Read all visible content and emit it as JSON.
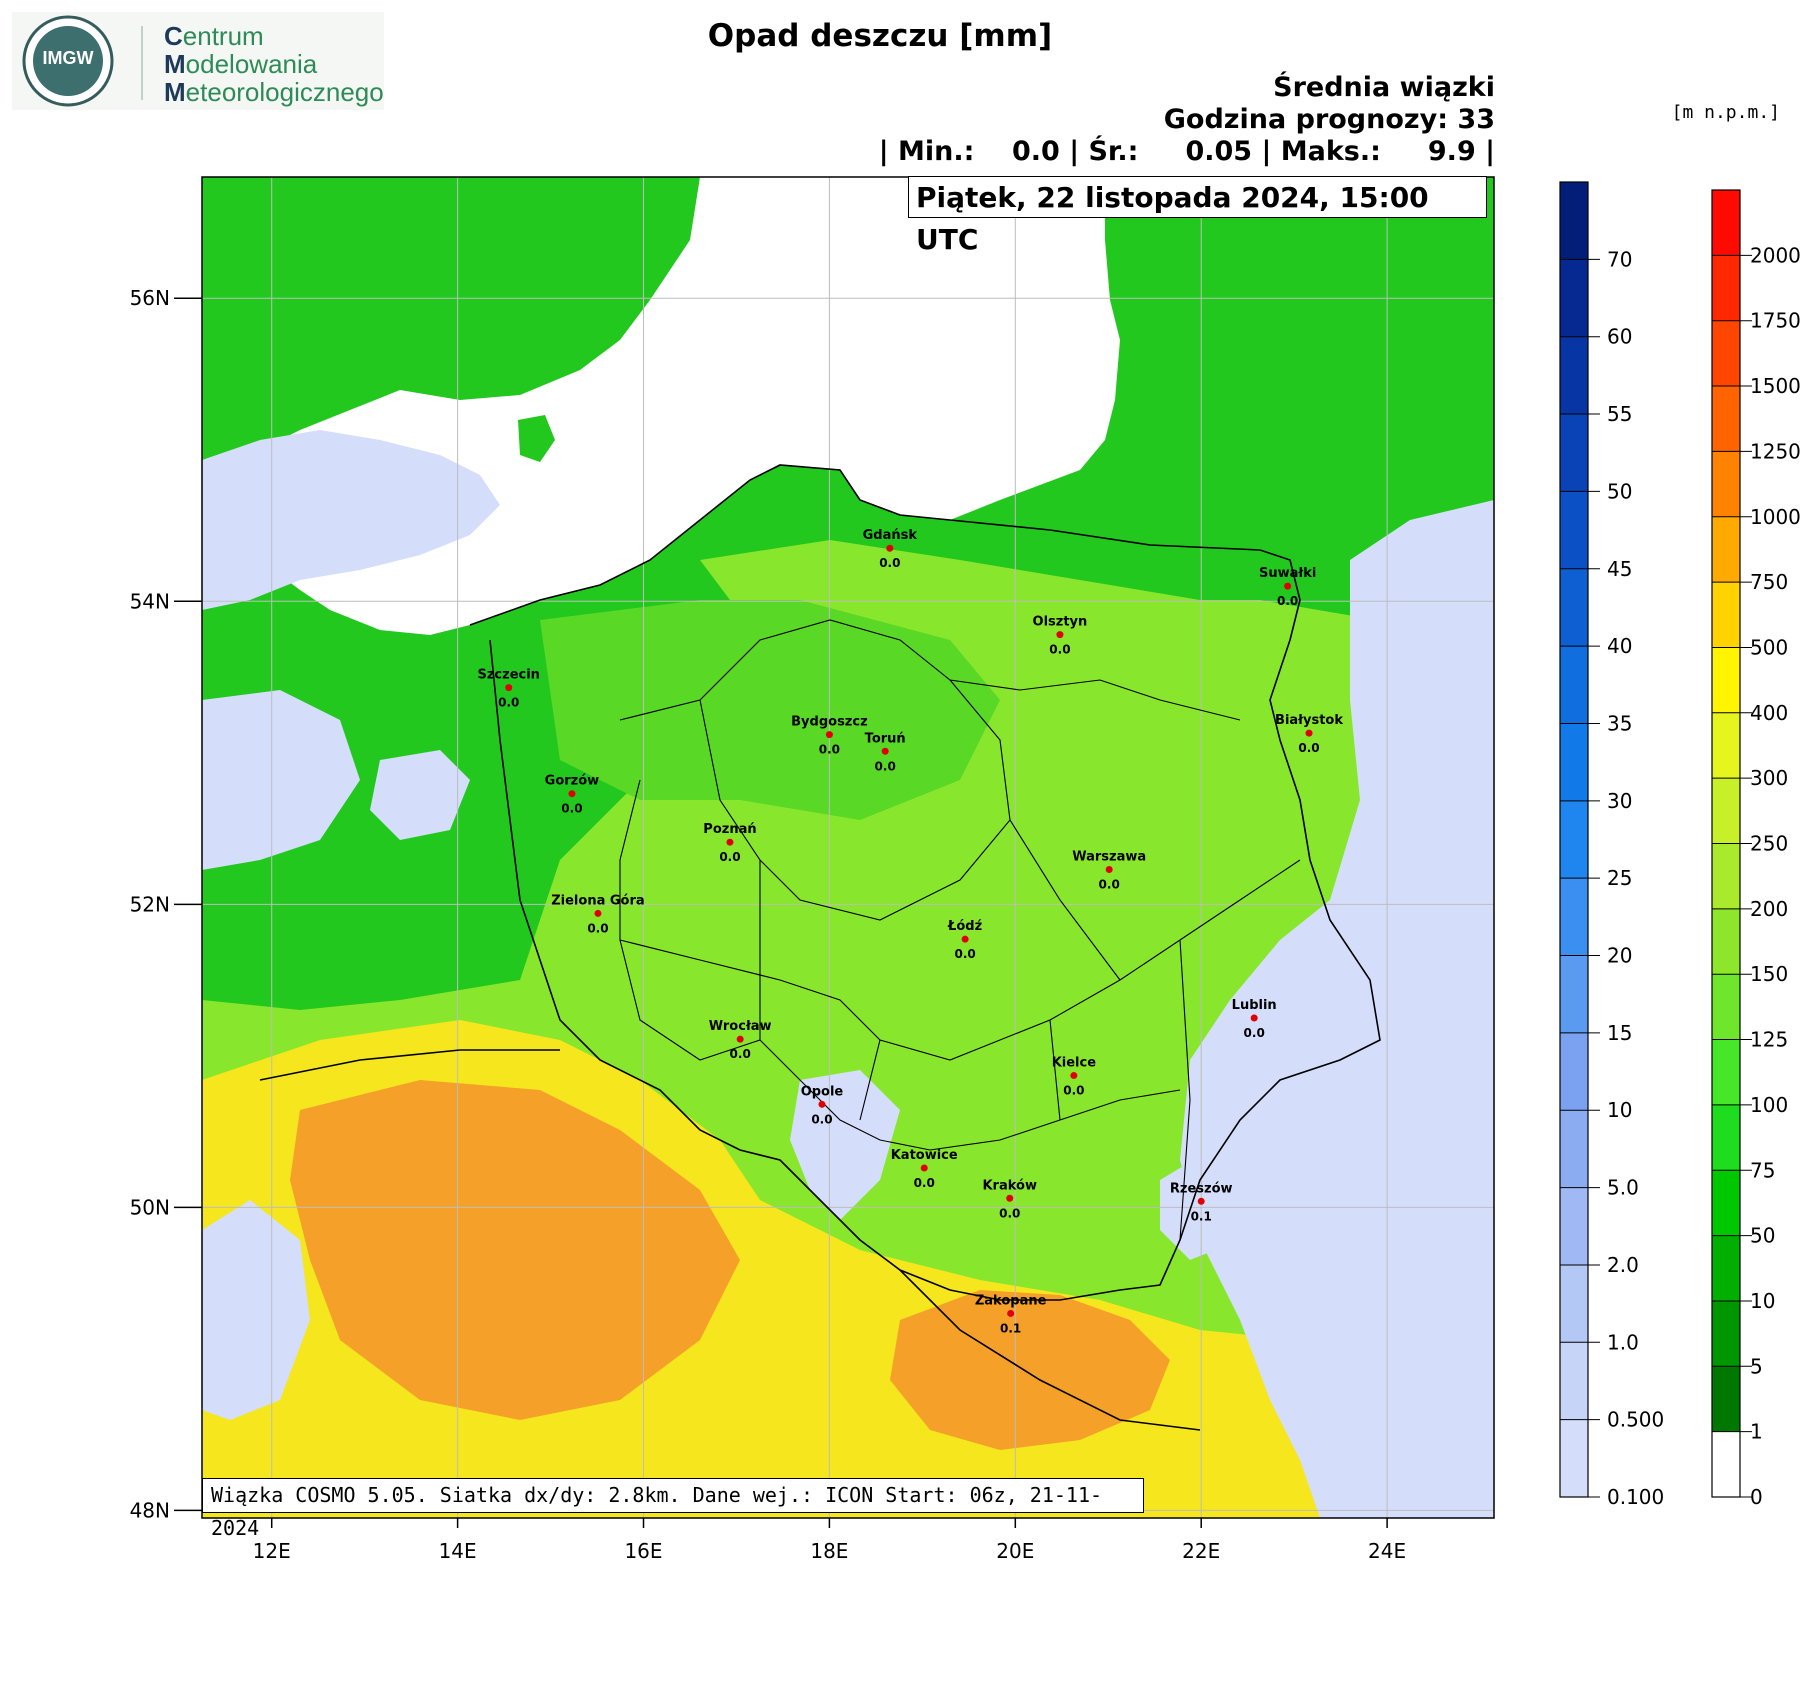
{
  "header": {
    "logo": {
      "org_lines": [
        [
          "C",
          "entrum"
        ],
        [
          "M",
          "odelowania"
        ],
        [
          "M",
          "eteorologicznego"
        ]
      ],
      "badge": "IMGW"
    },
    "title": "Opad deszczu [mm]",
    "ensemble": "Średnia wiązki",
    "forecast_hour": "Godzina prognozy: 33",
    "stats": "| Min.:    0.0 | Śr.:     0.05 | Maks.:     9.9 |",
    "date": "Piątek, 22 listopada 2024, 15:00 UTC",
    "elevation_unit": "[m n.p.m.]"
  },
  "footer": "Wiązka COSMO 5.05. Siatka dx/dy: 2.8km. Dane wej.: ICON Start: 06z, 21-11-2024",
  "map": {
    "lon_ticks": [
      "12E",
      "14E",
      "16E",
      "18E",
      "20E",
      "22E",
      "24E"
    ],
    "lat_ticks": [
      "56N",
      "54N",
      "52N",
      "50N",
      "48N"
    ],
    "lon_range": [
      11.25,
      25.15
    ],
    "lat_range": [
      47.95,
      56.8
    ],
    "colors": {
      "sea": "#ffffff",
      "lowland": "#22c81e",
      "midland": "#88e62c",
      "upland": "#f5e61e",
      "mountain": "#f5a028",
      "rain": "#d4defa",
      "border": "#000000"
    },
    "cities": [
      {
        "name": "Gdańsk",
        "value": "0.0",
        "lon": 18.65,
        "lat": 54.35
      },
      {
        "name": "Suwałki",
        "value": "0.0",
        "lon": 22.93,
        "lat": 54.1
      },
      {
        "name": "Olsztyn",
        "value": "0.0",
        "lon": 20.48,
        "lat": 53.78
      },
      {
        "name": "Szczecin",
        "value": "0.0",
        "lon": 14.55,
        "lat": 53.43
      },
      {
        "name": "Bydgoszcz",
        "value": "0.0",
        "lon": 18.0,
        "lat": 53.12
      },
      {
        "name": "Toruń",
        "value": "0.0",
        "lon": 18.6,
        "lat": 53.01
      },
      {
        "name": "Białystok",
        "value": "0.0",
        "lon": 23.16,
        "lat": 53.13
      },
      {
        "name": "Gorzów",
        "value": "0.0",
        "lon": 15.23,
        "lat": 52.73
      },
      {
        "name": "Poznań",
        "value": "0.0",
        "lon": 16.93,
        "lat": 52.41
      },
      {
        "name": "Warszawa",
        "value": "0.0",
        "lon": 21.01,
        "lat": 52.23
      },
      {
        "name": "Zielona Góra",
        "value": "0.0",
        "lon": 15.51,
        "lat": 51.94
      },
      {
        "name": "Łódź",
        "value": "0.0",
        "lon": 19.46,
        "lat": 51.77
      },
      {
        "name": "Lublin",
        "value": "0.0",
        "lon": 22.57,
        "lat": 51.25
      },
      {
        "name": "Wrocław",
        "value": "0.0",
        "lon": 17.04,
        "lat": 51.11
      },
      {
        "name": "Kielce",
        "value": "0.0",
        "lon": 20.63,
        "lat": 50.87
      },
      {
        "name": "Opole",
        "value": "0.0",
        "lon": 17.92,
        "lat": 50.68
      },
      {
        "name": "Katowice",
        "value": "0.0",
        "lon": 19.02,
        "lat": 50.26
      },
      {
        "name": "Kraków",
        "value": "0.0",
        "lon": 19.94,
        "lat": 50.06
      },
      {
        "name": "Rzeszów",
        "value": "0.1",
        "lon": 22.0,
        "lat": 50.04
      },
      {
        "name": "Zakopane",
        "value": "0.1",
        "lon": 19.95,
        "lat": 49.3
      }
    ]
  },
  "precip_legend": {
    "labels": [
      "0.100",
      "0.500",
      "1.0",
      "2.0",
      "5.0",
      "10",
      "15",
      "20",
      "25",
      "30",
      "35",
      "40",
      "45",
      "50",
      "55",
      "60",
      "70"
    ],
    "colors": [
      "#d4defa",
      "#c6d4f8",
      "#b4c8f6",
      "#a0b8f4",
      "#8cacf2",
      "#7aa2f0",
      "#5a9af0",
      "#3a8ff0",
      "#1f86f0",
      "#127ae8",
      "#106ede",
      "#0d5fd2",
      "#0b51c5",
      "#0943b6",
      "#0736a4",
      "#052990",
      "#031e78"
    ]
  },
  "elevation_legend": {
    "labels": [
      "0",
      "1",
      "5",
      "10",
      "50",
      "75",
      "100",
      "125",
      "150",
      "200",
      "250",
      "300",
      "400",
      "500",
      "750",
      "1000",
      "1250",
      "1500",
      "1750",
      "2000"
    ],
    "colors": [
      "#ffffff",
      "#007800",
      "#009600",
      "#00af00",
      "#00c800",
      "#1edc1e",
      "#46e628",
      "#6ee62c",
      "#8ee62c",
      "#aaea2c",
      "#c8f028",
      "#e6f51e",
      "#fff500",
      "#ffd200",
      "#ffaa00",
      "#ff8200",
      "#ff6400",
      "#ff4600",
      "#ff2800",
      "#ff0a00"
    ]
  }
}
